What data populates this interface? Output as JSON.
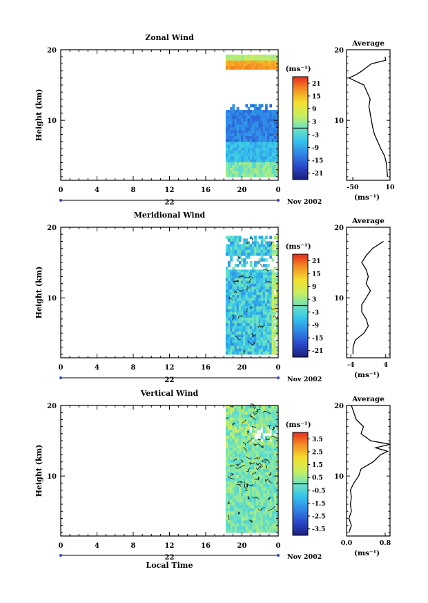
{
  "figure": {
    "time_axis_label": "Local Time",
    "date_label": "Nov 2002",
    "day_label": "22"
  },
  "chart_data": [
    {
      "type": "heatmap",
      "title": "Zonal Wind",
      "ylabel": "Height (km)",
      "xlim": [
        0,
        24
      ],
      "x_ticks": [
        "0",
        "4",
        "8",
        "12",
        "16",
        "20",
        "0"
      ],
      "ylim": [
        1.5,
        20
      ],
      "y_ticks": [
        "10",
        "20"
      ],
      "colorbar": {
        "unit": "(ms⁻¹)",
        "ticks": [
          "21",
          "15",
          "9",
          "3",
          "-3",
          "-9",
          "-15",
          "-21"
        ],
        "range": [
          -24,
          24
        ]
      },
      "data_time_range": [
        18.2,
        24
      ],
      "profile": {
        "title": "Average",
        "xlabel": "(ms⁻¹)",
        "x_ticks": [
          "-50",
          "10"
        ],
        "xlim": [
          -60,
          10
        ],
        "heights": [
          2,
          3,
          4,
          5,
          6,
          7,
          8,
          9,
          10,
          11,
          12,
          13,
          14,
          15,
          16,
          16.5,
          17,
          18,
          18.5,
          19
        ],
        "values": [
          6,
          5,
          4,
          1,
          -5,
          -10,
          -15,
          -18,
          -20,
          -22,
          -24,
          -22,
          -27,
          -32,
          -56,
          -44,
          -35,
          -20,
          3,
          2
        ]
      }
    },
    {
      "type": "heatmap",
      "title": "Meridional Wind",
      "ylabel": "Height (km)",
      "xlim": [
        0,
        24
      ],
      "x_ticks": [
        "0",
        "4",
        "8",
        "12",
        "16",
        "20",
        "0"
      ],
      "ylim": [
        1.5,
        20
      ],
      "y_ticks": [
        "10",
        "20"
      ],
      "colorbar": {
        "unit": "(ms⁻¹)",
        "ticks": [
          "21",
          "15",
          "9",
          "3",
          "-3",
          "-9",
          "-15",
          "-21"
        ],
        "range": [
          -24,
          24
        ]
      },
      "data_time_range": [
        18.2,
        24
      ],
      "profile": {
        "title": "Average",
        "xlabel": "(ms⁻¹)",
        "x_ticks": [
          "-4",
          "4"
        ],
        "xlim": [
          -5,
          5
        ],
        "heights": [
          2,
          3,
          4,
          5,
          6,
          7,
          8,
          9,
          10,
          11,
          12,
          13,
          14,
          15,
          16,
          17,
          18
        ],
        "values": [
          -3.5,
          -3.5,
          -3,
          -1,
          0,
          -0.5,
          -1.5,
          -1.5,
          -0.5,
          0.5,
          -0.5,
          0,
          -0.5,
          -1.5,
          -0.5,
          1,
          3.5
        ]
      }
    },
    {
      "type": "heatmap",
      "title": "Vertical Wind",
      "ylabel": "Height (km)",
      "xlim": [
        0,
        24
      ],
      "x_ticks": [
        "0",
        "4",
        "8",
        "12",
        "16",
        "20",
        "0"
      ],
      "ylim": [
        1.5,
        20
      ],
      "y_ticks": [
        "10",
        "20"
      ],
      "colorbar": {
        "unit": "(ms⁻¹)",
        "ticks": [
          "3.5",
          "2.5",
          "1.5",
          "0.5",
          "-0.5",
          "-1.5",
          "-2.5",
          "-3.5"
        ],
        "range": [
          -4,
          4
        ]
      },
      "data_time_range": [
        18.2,
        24
      ],
      "profile": {
        "title": "Average",
        "xlabel": "(ms⁻¹)",
        "x_ticks": [
          "0.0",
          "0.8"
        ],
        "xlim": [
          0,
          0.9
        ],
        "heights": [
          2,
          3,
          4,
          5,
          6,
          7,
          8,
          9,
          10,
          11,
          12,
          13,
          13.5,
          14,
          14.5,
          15,
          16,
          17,
          18,
          19,
          20
        ],
        "values": [
          0.05,
          0.1,
          0.05,
          0.1,
          0.08,
          0.1,
          0.08,
          0.15,
          0.25,
          0.3,
          0.55,
          0.7,
          0.85,
          0.6,
          0.9,
          0.5,
          0.3,
          0.35,
          0.2,
          0.15,
          0.1
        ]
      }
    }
  ]
}
